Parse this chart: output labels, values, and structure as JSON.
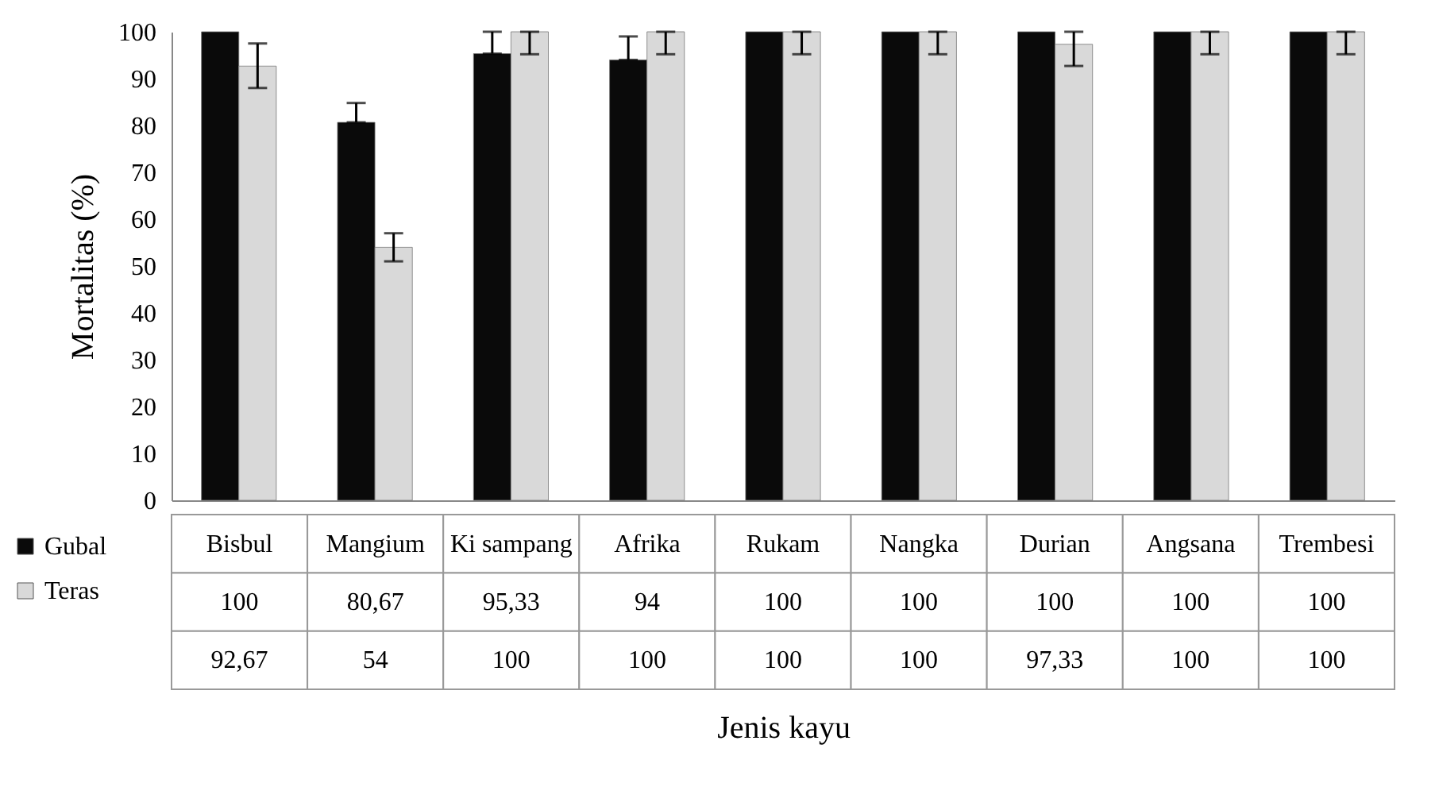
{
  "chart_data": {
    "type": "bar",
    "xlabel": "Jenis kayu",
    "ylabel": "Mortalitas (%)",
    "categories": [
      "Bisbul",
      "Mangium",
      "Ki sampang",
      "Afrika",
      "Rukam",
      "Nangka",
      "Durian",
      "Angsana",
      "Trembesi"
    ],
    "series": [
      {
        "name": "Gubal",
        "color": "#0a0a0a",
        "values": [
          100,
          80.67,
          95.33,
          94,
          100,
          100,
          100,
          100,
          100
        ],
        "errors": [
          null,
          [
            80.67,
            84.8
          ],
          [
            95.33,
            100
          ],
          [
            94,
            99
          ],
          null,
          null,
          null,
          null,
          null
        ],
        "value_labels": [
          "100",
          "80,67",
          "95,33",
          "94",
          "100",
          "100",
          "100",
          "100",
          "100"
        ]
      },
      {
        "name": "Teras",
        "color": "#d9d9d9",
        "values": [
          92.67,
          54,
          100,
          100,
          100,
          100,
          97.33,
          100,
          100
        ],
        "errors": [
          [
            88,
            97.5
          ],
          [
            51,
            57
          ],
          [
            95.2,
            100
          ],
          [
            95.2,
            100
          ],
          [
            95.2,
            100
          ],
          [
            95.2,
            100
          ],
          [
            92.7,
            100
          ],
          [
            95.2,
            100
          ],
          [
            95.2,
            100
          ]
        ],
        "value_labels": [
          "92,67",
          "54",
          "100",
          "100",
          "100",
          "100",
          "97,33",
          "100",
          "100"
        ]
      }
    ],
    "ylim": [
      0,
      100
    ],
    "yticks": [
      0,
      10,
      20,
      30,
      40,
      50,
      60,
      70,
      80,
      90,
      100
    ],
    "grid": false,
    "legend": "bottom left"
  }
}
